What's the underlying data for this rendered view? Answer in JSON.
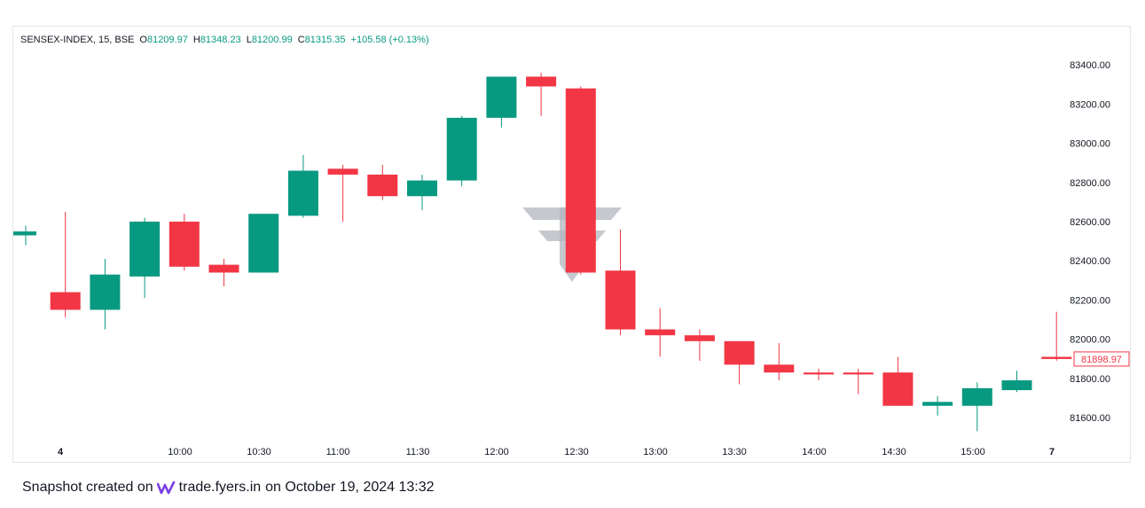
{
  "legend": {
    "symbol": "SENSEX-INDEX, 15, BSE",
    "o_key": "O",
    "o_val": "81209.97",
    "h_key": "H",
    "h_val": "81348.23",
    "l_key": "L",
    "l_val": "81200.99",
    "c_key": "C",
    "c_val": "81315.35",
    "change": "+105.58 (+0.13%)"
  },
  "footer": {
    "prefix": "Snapshot created on",
    "site": "trade.fyers.in",
    "suffix": "on October 19, 2024 13:32"
  },
  "colors": {
    "up": "#089981",
    "down": "#f23645",
    "watermark": "#b2b5be"
  },
  "chart_data": {
    "type": "candlestick",
    "price_tag": "81898.97",
    "y_ticks": [
      "83400.00",
      "83200.00",
      "83000.00",
      "82800.00",
      "82600.00",
      "82400.00",
      "82200.00",
      "82000.00",
      "81800.00",
      "81600.00"
    ],
    "x_ticks": [
      "4",
      "10:00",
      "10:30",
      "11:00",
      "11:30",
      "12:00",
      "12:30",
      "13:00",
      "13:30",
      "14:00",
      "14:30",
      "15:00",
      "7"
    ],
    "ylim": [
      81480,
      83480
    ],
    "candles": [
      {
        "o": 82530,
        "h": 82580,
        "l": 82480,
        "c": 82550
      },
      {
        "o": 82240,
        "h": 82650,
        "l": 82110,
        "c": 82150
      },
      {
        "o": 82150,
        "h": 82410,
        "l": 82050,
        "c": 82330
      },
      {
        "o": 82320,
        "h": 82620,
        "l": 82210,
        "c": 82600
      },
      {
        "o": 82600,
        "h": 82640,
        "l": 82350,
        "c": 82370
      },
      {
        "o": 82380,
        "h": 82410,
        "l": 82270,
        "c": 82340
      },
      {
        "o": 82340,
        "h": 82640,
        "l": 82340,
        "c": 82640
      },
      {
        "o": 82630,
        "h": 82940,
        "l": 82620,
        "c": 82860
      },
      {
        "o": 82870,
        "h": 82890,
        "l": 82600,
        "c": 82840
      },
      {
        "o": 82840,
        "h": 82890,
        "l": 82710,
        "c": 82730
      },
      {
        "o": 82730,
        "h": 82840,
        "l": 82660,
        "c": 82810
      },
      {
        "o": 82810,
        "h": 83140,
        "l": 82780,
        "c": 83130
      },
      {
        "o": 83130,
        "h": 83340,
        "l": 83080,
        "c": 83340
      },
      {
        "o": 83340,
        "h": 83360,
        "l": 83140,
        "c": 83290
      },
      {
        "o": 83280,
        "h": 83290,
        "l": 82330,
        "c": 82340
      },
      {
        "o": 82350,
        "h": 82560,
        "l": 82020,
        "c": 82050
      },
      {
        "o": 82050,
        "h": 82160,
        "l": 81910,
        "c": 82020
      },
      {
        "o": 82020,
        "h": 82050,
        "l": 81890,
        "c": 81990
      },
      {
        "o": 81990,
        "h": 81990,
        "l": 81770,
        "c": 81870
      },
      {
        "o": 81870,
        "h": 81980,
        "l": 81790,
        "c": 81830
      },
      {
        "o": 81830,
        "h": 81850,
        "l": 81790,
        "c": 81820
      },
      {
        "o": 81830,
        "h": 81850,
        "l": 81720,
        "c": 81820
      },
      {
        "o": 81830,
        "h": 81910,
        "l": 81660,
        "c": 81660
      },
      {
        "o": 81660,
        "h": 81710,
        "l": 81610,
        "c": 81680
      },
      {
        "o": 81660,
        "h": 81780,
        "l": 81530,
        "c": 81750
      },
      {
        "o": 81740,
        "h": 81840,
        "l": 81730,
        "c": 81790
      },
      {
        "o": 81910,
        "h": 82140,
        "l": 81890,
        "c": 81899
      }
    ]
  }
}
